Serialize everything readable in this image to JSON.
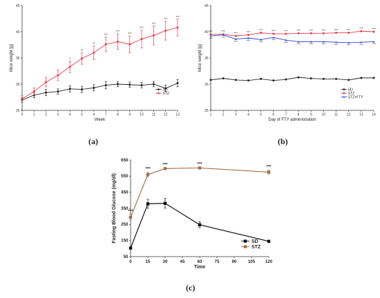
{
  "chart_data": [
    {
      "type": "line",
      "panel_label": "(a)",
      "xlabel": "Week",
      "ylabel": "Mice weight [g]",
      "xlim": [
        0,
        13
      ],
      "ylim": [
        25,
        45
      ],
      "xticks": [
        "0",
        "1",
        "2",
        "3",
        "4",
        "5",
        "6",
        "7",
        "8",
        "9",
        "10",
        "11",
        "12",
        "13"
      ],
      "yticks": [
        "25",
        "30",
        "35",
        "40",
        "45"
      ],
      "legend_position": "bottom-right",
      "x": [
        0,
        1,
        2,
        3,
        4,
        5,
        6,
        7,
        8,
        9,
        10,
        11,
        12,
        13
      ],
      "series": [
        {
          "name": "SD",
          "color": "#222222",
          "marker": "circle",
          "values": [
            27.0,
            27.9,
            28.4,
            28.6,
            29.1,
            29.0,
            29.3,
            29.8,
            30.0,
            29.9,
            29.8,
            30.0,
            29.2,
            30.2
          ],
          "errors": [
            0.4,
            0.5,
            0.6,
            0.5,
            0.6,
            0.6,
            0.6,
            0.7,
            0.5,
            0.5,
            0.5,
            0.5,
            0.6,
            0.7
          ]
        },
        {
          "name": "STZ",
          "color": "#e83a4a",
          "marker": "circle",
          "values": [
            27.2,
            28.6,
            30.4,
            31.7,
            33.3,
            34.9,
            36.0,
            37.6,
            38.1,
            37.6,
            38.6,
            39.3,
            40.2,
            40.8
          ],
          "errors": [
            0.6,
            0.7,
            0.9,
            1.0,
            1.1,
            1.1,
            1.3,
            1.4,
            1.5,
            1.6,
            1.7,
            1.8,
            1.8,
            1.6
          ]
        }
      ],
      "annotations": [
        {
          "x": 4,
          "text": "*"
        },
        {
          "x": 5,
          "text": "**"
        },
        {
          "x": 6,
          "text": "**"
        },
        {
          "x": 7,
          "text": "***"
        },
        {
          "x": 8,
          "text": "***"
        },
        {
          "x": 9,
          "text": "***"
        },
        {
          "x": 10,
          "text": "***"
        },
        {
          "x": 11,
          "text": "***"
        },
        {
          "x": 12,
          "text": "***"
        },
        {
          "x": 13,
          "text": "***"
        }
      ]
    },
    {
      "type": "line",
      "panel_label": "(b)",
      "xlabel": "Day of FTY administration",
      "ylabel": "Mice weight [g]",
      "xlim": [
        1,
        14
      ],
      "ylim": [
        25,
        45
      ],
      "xticks": [
        "1",
        "2",
        "3",
        "4",
        "5",
        "6",
        "7",
        "8",
        "9",
        "10",
        "11",
        "12",
        "13",
        "14"
      ],
      "yticks": [
        "25",
        "30",
        "35",
        "40",
        "45"
      ],
      "legend_position": "bottom-right",
      "x": [
        1,
        2,
        3,
        4,
        5,
        6,
        7,
        8,
        9,
        10,
        11,
        12,
        13,
        14
      ],
      "series": [
        {
          "name": "SD",
          "color": "#222222",
          "marker": "circle",
          "values": [
            30.8,
            31.1,
            30.8,
            30.7,
            31.0,
            30.7,
            30.9,
            31.3,
            31.1,
            31.0,
            31.0,
            30.8,
            31.2,
            31.2
          ]
        },
        {
          "name": "STZ",
          "color": "#e83a4a",
          "marker": "circle",
          "values": [
            39.5,
            39.5,
            39.2,
            39.4,
            39.8,
            39.6,
            39.6,
            39.7,
            39.7,
            39.7,
            39.8,
            39.8,
            40.1,
            40.0
          ]
        },
        {
          "name": "STZ+FTY",
          "color": "#2b3fd6",
          "marker": "triangle",
          "values": [
            39.2,
            39.4,
            38.6,
            38.8,
            38.5,
            38.9,
            38.4,
            38.1,
            38.1,
            38.1,
            38.0,
            37.9,
            38.0,
            38.1
          ]
        }
      ],
      "annotations_top": [
        "***",
        "***",
        "***",
        "***",
        "***",
        "***",
        "***",
        "***",
        "***",
        "***",
        "***",
        "***",
        "***",
        "***"
      ],
      "annotations_bottom": [
        "***",
        "***",
        "***",
        "***",
        "***",
        "***",
        "***",
        "***",
        "***",
        "***",
        "***",
        "***",
        "***",
        "***"
      ]
    },
    {
      "type": "line",
      "panel_label": "(c)",
      "xlabel": "Time",
      "ylabel": "Fasting Blood Glucose (mg/dl)",
      "xlim": [
        0,
        120
      ],
      "ylim": [
        50,
        650
      ],
      "xticks": [
        "0",
        "15",
        "30",
        "45",
        "60",
        "75",
        "90",
        "105",
        "120"
      ],
      "yticks": [
        "50",
        "150",
        "250",
        "350",
        "450",
        "550",
        "650"
      ],
      "legend_position": "bottom-right",
      "x": [
        0,
        15,
        30,
        60,
        120
      ],
      "series": [
        {
          "name": "SD",
          "color": "#111111",
          "marker": "square",
          "values": [
            103,
            378,
            381,
            248,
            145
          ],
          "errors": [
            6,
            28,
            30,
            18,
            5
          ]
        },
        {
          "name": "STZ",
          "color": "#a0714a",
          "marker": "square",
          "values": [
            294,
            560,
            597,
            601,
            575
          ],
          "errors": [
            18,
            14,
            4,
            4,
            12
          ]
        }
      ],
      "annotations": [
        {
          "x": 0,
          "text": "***"
        },
        {
          "x": 15,
          "text": "***"
        },
        {
          "x": 30,
          "text": "***"
        },
        {
          "x": 60,
          "text": "***"
        },
        {
          "x": 120,
          "text": "***"
        }
      ]
    }
  ]
}
